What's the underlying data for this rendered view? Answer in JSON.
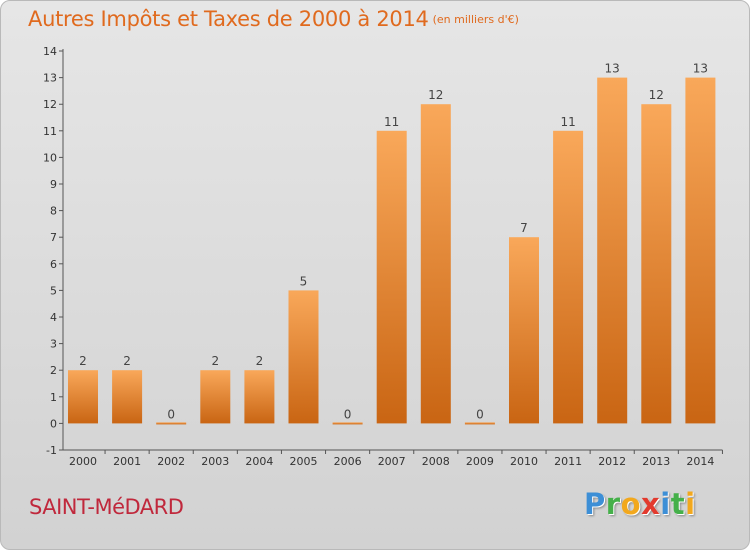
{
  "title": "Autres Impôts et Taxes de 2000 à 2014",
  "unit": "(en milliers d'€)",
  "location": "SAINT-MéDARD",
  "brand": {
    "letters": [
      "P",
      "r",
      "o",
      "x",
      "i",
      "t",
      "i"
    ],
    "colors": [
      "#3d8fd6",
      "#45b04a",
      "#f2a81d",
      "#e23a2e",
      "#3d8fd6",
      "#45b04a",
      "#f2a81d"
    ]
  },
  "colors": {
    "title": "#e06a1e",
    "location": "#c0283c",
    "bar_top": "#f9a85a",
    "bar_bottom": "#c96513"
  },
  "chart_data": {
    "type": "bar",
    "categories": [
      "2000",
      "2001",
      "2002",
      "2003",
      "2004",
      "2005",
      "2006",
      "2007",
      "2008",
      "2009",
      "2010",
      "2011",
      "2012",
      "2013",
      "2014"
    ],
    "values": [
      2,
      2,
      0,
      2,
      2,
      5,
      0,
      11,
      12,
      0,
      7,
      11,
      13,
      12,
      13
    ],
    "ylim": [
      -1,
      14
    ],
    "yticks": [
      -1,
      0,
      1,
      2,
      3,
      4,
      5,
      6,
      7,
      8,
      9,
      10,
      11,
      12,
      13,
      14
    ],
    "data_labels": true,
    "grid": false
  }
}
